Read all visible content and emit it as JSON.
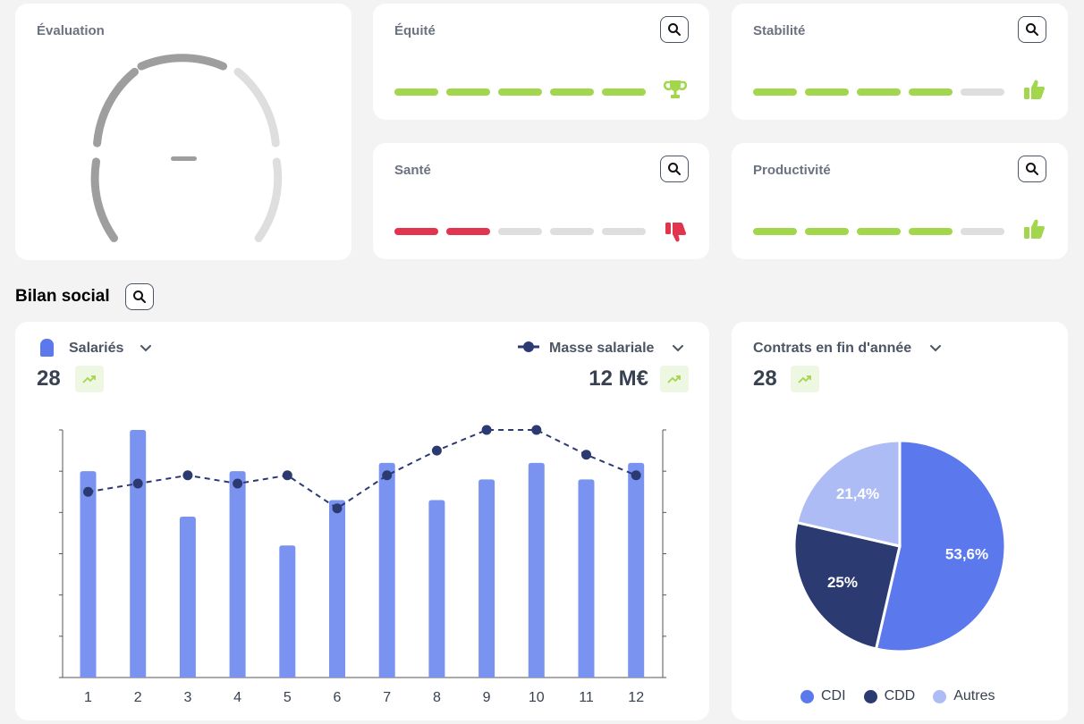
{
  "colors": {
    "green": "#a2d64c",
    "red": "#e0344f",
    "grey": "#dedede",
    "bar": "#7b93f0",
    "line": "#2c3a72",
    "cdi": "#5b79ec",
    "cdd": "#2c3a72",
    "autres": "#adbcf5"
  },
  "evaluation": {
    "title": "Évaluation",
    "value": "–"
  },
  "indicators": [
    {
      "title": "Équité",
      "filled": 5,
      "color": "green",
      "icon": "trophy-icon"
    },
    {
      "title": "Stabilité",
      "filled": 4,
      "color": "green",
      "icon": "thumbs-up-icon"
    },
    {
      "title": "Santé",
      "filled": 2,
      "color": "red",
      "icon": "thumbs-down-icon"
    },
    {
      "title": "Productivité",
      "filled": 4,
      "color": "green",
      "icon": "thumbs-up-icon"
    }
  ],
  "section": {
    "title": "Bilan social"
  },
  "employees_card": {
    "left_label": "Salariés",
    "left_value": "28",
    "right_label": "Masse salariale",
    "right_value": "12 M€"
  },
  "contracts_card": {
    "label": "Contrats en fin d'année",
    "value": "28"
  },
  "chart_data": [
    {
      "type": "bar",
      "categories": [
        "1",
        "2",
        "3",
        "4",
        "5",
        "6",
        "7",
        "8",
        "9",
        "10",
        "11",
        "12"
      ],
      "series": [
        {
          "name": "Salariés",
          "type": "bar",
          "values": [
            25,
            30,
            19.5,
            25,
            16,
            21.5,
            26,
            21.5,
            24,
            26,
            24,
            26
          ]
        },
        {
          "name": "Masse salariale",
          "type": "line",
          "values": [
            22.5,
            23.5,
            24.5,
            23.5,
            24.5,
            20.5,
            24.5,
            27.5,
            30,
            30,
            27,
            24.5
          ]
        }
      ],
      "ylim": [
        0,
        30
      ]
    },
    {
      "type": "pie",
      "categories": [
        "CDI",
        "CDD",
        "Autres"
      ],
      "values": [
        53.6,
        25,
        21.4
      ],
      "labels": [
        "53,6%",
        "25%",
        "21,4%"
      ]
    }
  ]
}
